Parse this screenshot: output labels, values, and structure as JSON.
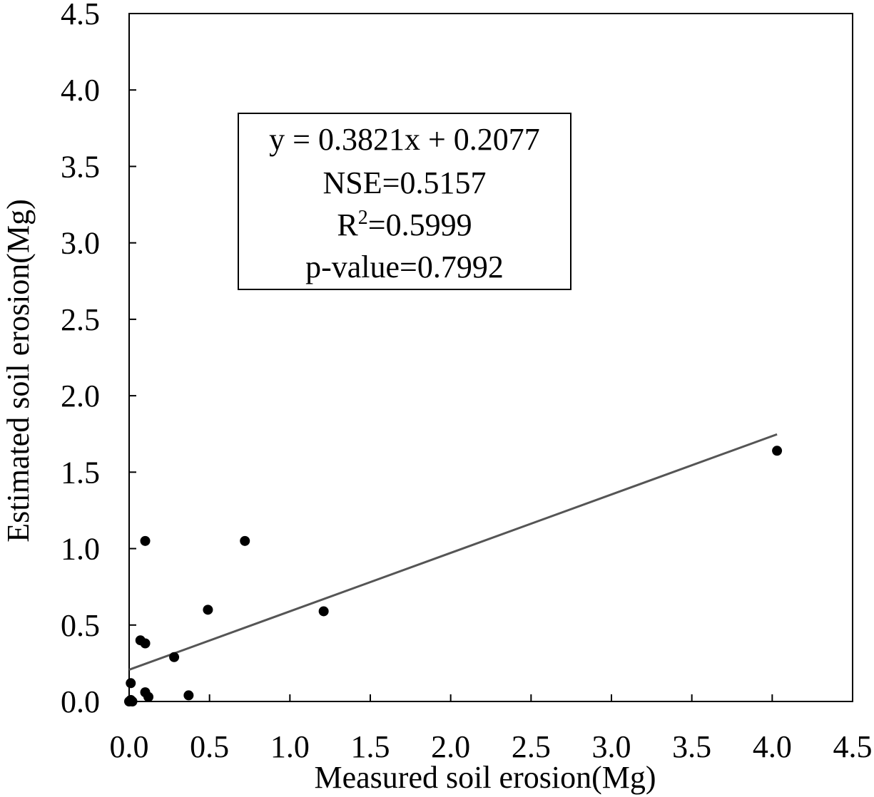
{
  "chart_data": {
    "type": "scatter",
    "title": "",
    "xlabel": "Measured soil erosion(Mg)",
    "ylabel": "Estimated soil erosion(Mg)",
    "xlim": [
      0,
      4.5
    ],
    "ylim": [
      0,
      4.5
    ],
    "xticks": [
      "0.0",
      "0.5",
      "1.0",
      "1.5",
      "2.0",
      "2.5",
      "3.0",
      "3.5",
      "4.0",
      "4.5"
    ],
    "yticks": [
      "0.0",
      "0.5",
      "1.0",
      "1.5",
      "2.0",
      "2.5",
      "3.0",
      "3.5",
      "4.0",
      "4.5"
    ],
    "grid": false,
    "points": [
      {
        "x": 0.0,
        "y": 0.0
      },
      {
        "x": 0.01,
        "y": 0.01
      },
      {
        "x": 0.02,
        "y": 0.0
      },
      {
        "x": 0.01,
        "y": 0.12
      },
      {
        "x": 0.07,
        "y": 0.4
      },
      {
        "x": 0.1,
        "y": 0.38
      },
      {
        "x": 0.1,
        "y": 1.05
      },
      {
        "x": 0.1,
        "y": 0.06
      },
      {
        "x": 0.12,
        "y": 0.03
      },
      {
        "x": 0.28,
        "y": 0.29
      },
      {
        "x": 0.37,
        "y": 0.04
      },
      {
        "x": 0.49,
        "y": 0.6
      },
      {
        "x": 0.72,
        "y": 1.05
      },
      {
        "x": 1.21,
        "y": 0.59
      },
      {
        "x": 4.03,
        "y": 1.64
      }
    ],
    "trendline": {
      "slope": 0.3821,
      "intercept": 0.2077,
      "x_range": [
        0,
        4.03
      ],
      "color": "#555555"
    },
    "annotation": {
      "equation": "y = 0.3821x + 0.2077",
      "nse": "NSE=0.5157",
      "r2_prefix": "R",
      "r2_sup": "2",
      "r2_value": "=0.5999",
      "pvalue": "p-value=0.7992"
    }
  }
}
